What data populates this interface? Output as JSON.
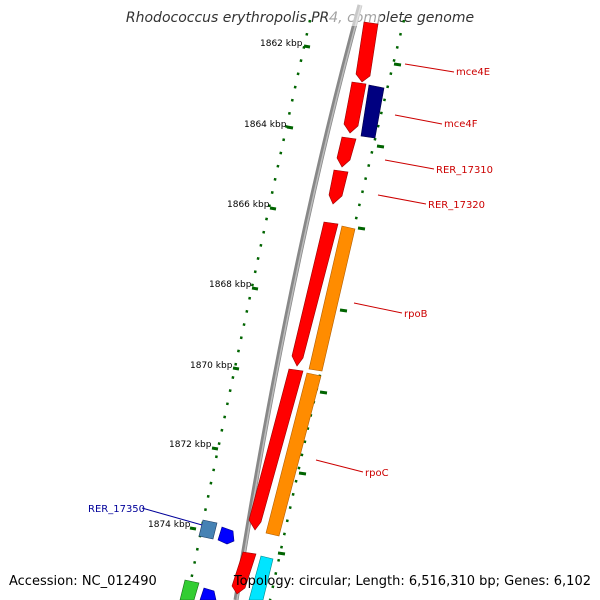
{
  "title": "Rhodococcus erythropolis PR4, complete genome",
  "footer": {
    "accession": "Accession: NC_012490",
    "summary": "Topology: circular; Length: 6,516,310 bp; Genes: 6,102"
  },
  "ticks": [
    {
      "label": "1862 kbp"
    },
    {
      "label": "1864 kbp"
    },
    {
      "label": "1866 kbp"
    },
    {
      "label": "1868 kbp"
    },
    {
      "label": "1870 kbp"
    },
    {
      "label": "1872 kbp"
    },
    {
      "label": "1874 kbp"
    }
  ],
  "gene_labels": [
    {
      "name": "mce4E",
      "color": "#cc0000"
    },
    {
      "name": "mce4F",
      "color": "#cc0000"
    },
    {
      "name": "RER_17310",
      "color": "#cc0000"
    },
    {
      "name": "RER_17320",
      "color": "#cc0000"
    },
    {
      "name": "rpoB",
      "color": "#cc0000"
    },
    {
      "name": "rpoC",
      "color": "#cc0000"
    },
    {
      "name": "RER_17350",
      "color": "#000099"
    }
  ],
  "colors": {
    "backbone": "#808080",
    "gene_red": "#ff0000",
    "gene_orange": "#ff8c00",
    "gene_navy": "#000080",
    "gene_blue": "#0000ff",
    "gene_steel": "#4682b4",
    "gene_cyan": "#00ffff",
    "gene_green": "#32cd32",
    "tick_green": "#006400"
  }
}
